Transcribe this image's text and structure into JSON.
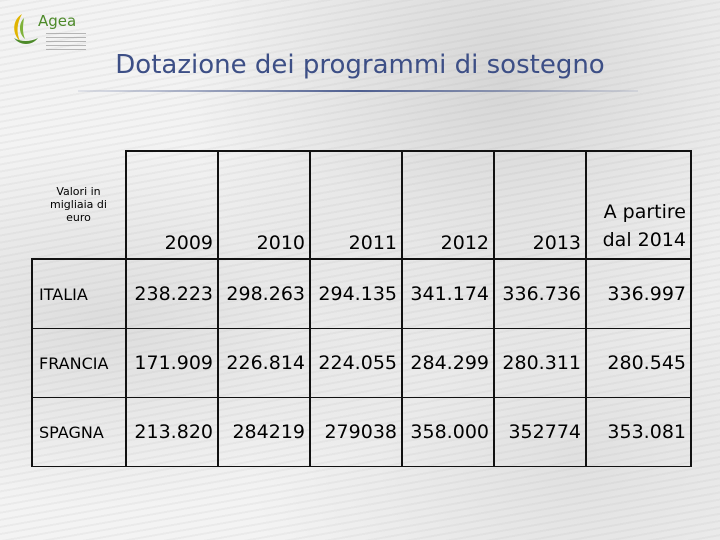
{
  "header": {
    "logo_text": "Agea",
    "title": "Dotazione dei programmi di sostegno"
  },
  "table": {
    "unit_note": "Valori in migliaia di euro",
    "columns": [
      "2009",
      "2010",
      "2011",
      "2012",
      "2013",
      "A partire dal 2014"
    ],
    "rows": [
      {
        "country": "ITALIA",
        "values": [
          "238.223",
          "298.263",
          "294.135",
          "341.174",
          "336.736",
          "336.997"
        ]
      },
      {
        "country": "FRANCIA",
        "values": [
          "171.909",
          "226.814",
          "224.055",
          "284.299",
          "280.311",
          "280.545"
        ]
      },
      {
        "country": "SPAGNA",
        "values": [
          "213.820",
          "284219",
          "279038",
          "358.000",
          "352774",
          "353.081"
        ]
      }
    ]
  },
  "colors": {
    "title": "#3d4f86",
    "logo_green": "#4d8a2a",
    "logo_yellow": "#e0b400"
  }
}
